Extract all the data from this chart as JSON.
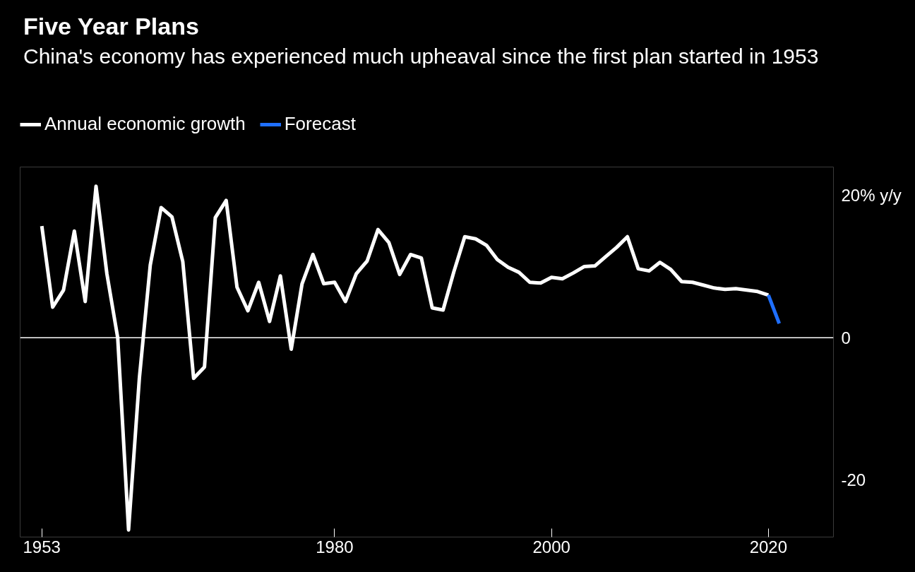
{
  "chart_data": {
    "type": "line",
    "title": "Five Year Plans",
    "subtitle": "China's economy has experienced much upheaval since the first plan started in 1953",
    "series": [
      {
        "name": "Annual economic growth",
        "color": "#ffffff",
        "x": [
          1953,
          1954,
          1955,
          1956,
          1957,
          1958,
          1959,
          1960,
          1961,
          1962,
          1963,
          1964,
          1965,
          1966,
          1967,
          1968,
          1969,
          1970,
          1971,
          1972,
          1973,
          1974,
          1975,
          1976,
          1977,
          1978,
          1979,
          1980,
          1981,
          1982,
          1983,
          1984,
          1985,
          1986,
          1987,
          1988,
          1989,
          1990,
          1991,
          1992,
          1993,
          1994,
          1995,
          1996,
          1997,
          1998,
          1999,
          2000,
          2001,
          2002,
          2003,
          2004,
          2005,
          2006,
          2007,
          2008,
          2009,
          2010,
          2011,
          2012,
          2013,
          2014,
          2015,
          2016,
          2017,
          2018,
          2019,
          2020
        ],
        "values": [
          15.7,
          4.3,
          6.7,
          15.0,
          5.1,
          21.3,
          9.0,
          0,
          -27.0,
          -5.6,
          10.2,
          18.3,
          17.0,
          10.7,
          -5.7,
          -4.1,
          16.9,
          19.3,
          7.1,
          3.8,
          7.8,
          2.3,
          8.7,
          -1.6,
          7.6,
          11.7,
          7.6,
          7.8,
          5.1,
          9.0,
          10.8,
          15.2,
          13.4,
          8.9,
          11.7,
          11.2,
          4.2,
          3.9,
          9.3,
          14.2,
          13.9,
          13.0,
          11.0,
          9.9,
          9.2,
          7.8,
          7.7,
          8.5,
          8.3,
          9.1,
          10.0,
          10.1,
          11.4,
          12.7,
          14.2,
          9.7,
          9.4,
          10.6,
          9.6,
          7.9,
          7.8,
          7.4,
          7.0,
          6.8,
          6.9,
          6.7,
          6.5,
          6.0
        ]
      },
      {
        "name": "Forecast",
        "color": "#1f6fff",
        "x": [
          2020,
          2021
        ],
        "values": [
          6.0,
          2.0
        ]
      }
    ],
    "xlim": [
      1951,
      2026
    ],
    "ylim": [
      -28,
      24
    ],
    "xticks": [
      1953,
      1980,
      2000,
      2020
    ],
    "yticks": [
      {
        "value": 20,
        "label": "20% y/y"
      },
      0,
      -20
    ],
    "ref_lines": [
      {
        "axis": "y",
        "value": 0,
        "color": "#ffffff"
      }
    ],
    "grid": false,
    "legend": "top left",
    "line_style": "solid",
    "marker": "none"
  }
}
